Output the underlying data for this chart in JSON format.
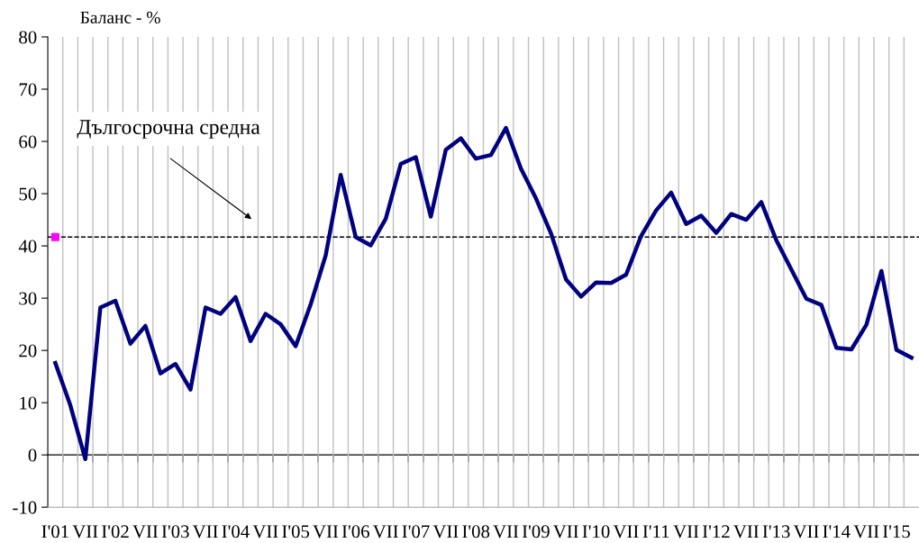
{
  "chart_data": {
    "type": "line",
    "ylabel": "Баланс - %",
    "categories": [
      "I'01",
      null,
      "VII",
      null,
      "I'02",
      null,
      "VII",
      null,
      "I'03",
      null,
      "VII",
      null,
      "I'04",
      null,
      "VII",
      null,
      "I'05",
      null,
      "VII",
      null,
      "I'06",
      null,
      "VII",
      null,
      "I'07",
      null,
      "VII",
      null,
      "I'08",
      null,
      "VII",
      null,
      "I'09",
      null,
      "VII",
      null,
      "I'10",
      null,
      "VII",
      null,
      "I'11",
      null,
      "VII",
      null,
      "I'12",
      null,
      "VII",
      null,
      "I'13",
      null,
      "VII",
      null,
      "I'14",
      null,
      "VII",
      null,
      "I'15",
      null
    ],
    "series": [
      {
        "color": "#000080",
        "values": [
          17.6,
          9.5,
          -0.8,
          28.2,
          29.5,
          21.3,
          24.7,
          15.6,
          17.4,
          12.5,
          28.2,
          27.0,
          30.2,
          21.8,
          27.0,
          25.0,
          20.8,
          28.8,
          38.2,
          53.6,
          41.7,
          40.1,
          45.2,
          55.7,
          57.0,
          45.6,
          58.4,
          60.6,
          56.7,
          57.4,
          62.6,
          54.8,
          49.1,
          42.4,
          33.6,
          30.3,
          33.0,
          32.9,
          34.5,
          41.9,
          46.8,
          50.2,
          44.2,
          45.8,
          42.5,
          46.1,
          45.0,
          48.4,
          41.1,
          35.5,
          29.9,
          28.7,
          20.5,
          20.2,
          24.9,
          35.2,
          20.1,
          18.6
        ]
      },
      {
        "type": "scatter",
        "color": "#ff00ff",
        "marker": "square",
        "values": [
          41.7,
          null,
          null,
          null,
          null,
          null,
          null,
          null,
          null,
          null,
          null,
          null,
          null,
          null,
          null,
          null,
          null,
          null,
          null,
          null,
          null,
          null,
          null,
          null,
          null,
          null,
          null,
          null,
          null,
          null,
          null,
          null,
          null,
          null,
          null,
          null,
          null,
          null,
          null,
          null,
          null,
          null,
          null,
          null,
          null,
          null,
          null,
          null,
          null,
          null,
          null,
          null,
          null,
          null,
          null,
          null,
          null,
          null
        ]
      }
    ],
    "ylim": [
      -10,
      80
    ],
    "yticks": [
      -10,
      0,
      10,
      20,
      30,
      40,
      50,
      60,
      70,
      80
    ],
    "grid": "x",
    "ref_lines": [
      {
        "axis": "y",
        "value": 41.7,
        "label": "Дългосрочна средна",
        "color": "#000000",
        "line_style": "dashed"
      }
    ]
  }
}
